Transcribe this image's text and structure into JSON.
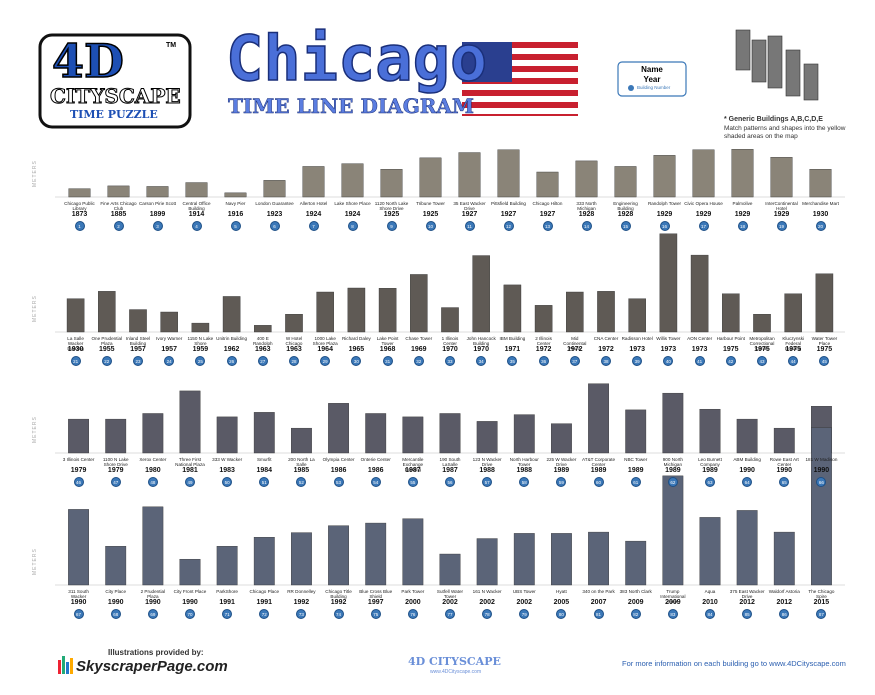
{
  "header": {
    "logo_title": "4D",
    "logo_subtitle": "CITYSCAPE",
    "logo_tm": "TM",
    "logo_caption": "TIME PUZZLE",
    "title": "Chicago",
    "subtitle": "TIME LINE DIAGRAM",
    "legend_box": {
      "name": "Name",
      "year": "Year",
      "number": "Building Number"
    },
    "generic_note": "* Generic Buildings A,B,C,D,E",
    "generic_instructions": "Match patterns and shapes into the yellow shaded areas on the map"
  },
  "rows": [
    {
      "axis_label": "METERS",
      "ylim": [
        0,
        180
      ],
      "color": "#8a8478",
      "buildings": [
        {
          "name": "Chicago Public Library",
          "year": 1873,
          "number": 1,
          "height": 30
        },
        {
          "name": "Fine Arts Chicago Club",
          "year": 1885,
          "number": 2,
          "height": 40
        },
        {
          "name": "Carson Pirie Scott",
          "year": 1899,
          "number": 3,
          "height": 38
        },
        {
          "name": "Central Office Building",
          "year": 1914,
          "number": 4,
          "height": 52
        },
        {
          "name": "Navy Pier",
          "year": 1916,
          "number": 5,
          "height": 15
        },
        {
          "name": "London Guarantee",
          "year": 1923,
          "number": 6,
          "height": 60
        },
        {
          "name": "Allerton Hotel",
          "year": 1924,
          "number": 7,
          "height": 110
        },
        {
          "name": "Lake Shore Place",
          "year": 1924,
          "number": 8,
          "height": 120
        },
        {
          "name": "1120 North Lake Shore Drive",
          "year": 1925,
          "number": 9,
          "height": 100
        },
        {
          "name": "Tribune Tower",
          "year": 1925,
          "number": 10,
          "height": 141
        },
        {
          "name": "35 East Wacker Drive",
          "year": 1927,
          "number": 11,
          "height": 160
        },
        {
          "name": "Pittsfield Building",
          "year": 1927,
          "number": 12,
          "height": 170
        },
        {
          "name": "Chicago Hilton",
          "year": 1927,
          "number": 13,
          "height": 90
        },
        {
          "name": "333 North Michigan",
          "year": 1928,
          "number": 14,
          "height": 130
        },
        {
          "name": "Engineering Building",
          "year": 1928,
          "number": 15,
          "height": 110
        },
        {
          "name": "Randolph Tower",
          "year": 1929,
          "number": 16,
          "height": 150
        },
        {
          "name": "Civic Opera House",
          "year": 1929,
          "number": 17,
          "height": 170
        },
        {
          "name": "Palmolive",
          "year": 1929,
          "number": 18,
          "height": 172
        },
        {
          "name": "InterContinental Hotel",
          "year": 1929,
          "number": 19,
          "height": 143
        },
        {
          "name": "Merchandise Mart",
          "year": 1930,
          "number": 20,
          "height": 100
        }
      ]
    },
    {
      "axis_label": "METERS",
      "ylim": [
        0,
        450
      ],
      "color": "#5f5a55",
      "buildings": [
        {
          "name": "La Salle Wacker Building",
          "year": 1930,
          "number": 21,
          "height": 150
        },
        {
          "name": "One Prudential Plaza",
          "year": 1955,
          "number": 22,
          "height": 183
        },
        {
          "name": "Inland Steel Building",
          "year": 1957,
          "number": 23,
          "height": 101
        },
        {
          "name": "Ivory Warner",
          "year": 1957,
          "number": 24,
          "height": 90
        },
        {
          "name": "1150 N Lake Shore",
          "year": 1959,
          "number": 25,
          "height": 40
        },
        {
          "name": "Unitrin Building",
          "year": 1962,
          "number": 26,
          "height": 160
        },
        {
          "name": "400 E Randolph",
          "year": 1963,
          "number": 27,
          "height": 30
        },
        {
          "name": "W Hotel Chicago",
          "year": 1963,
          "number": 28,
          "height": 80
        },
        {
          "name": "1000 Lake Shore Plaza",
          "year": 1964,
          "number": 29,
          "height": 180
        },
        {
          "name": "Richard Daley",
          "year": 1965,
          "number": 30,
          "height": 198
        },
        {
          "name": "Lake Point Tower",
          "year": 1968,
          "number": 31,
          "height": 197
        },
        {
          "name": "Chase Tower",
          "year": 1969,
          "number": 32,
          "height": 259
        },
        {
          "name": "1 Illinois Center",
          "year": 1970,
          "number": 33,
          "height": 110
        },
        {
          "name": "John Hancock Building",
          "year": 1970,
          "number": 34,
          "height": 344
        },
        {
          "name": "IBM Building",
          "year": 1971,
          "number": 35,
          "height": 212
        },
        {
          "name": "2 Illinois Center",
          "year": 1972,
          "number": 36,
          "height": 120
        },
        {
          "name": "Mid Continental Plaza",
          "year": 1972,
          "number": 37,
          "height": 180
        },
        {
          "name": "CNA Center",
          "year": 1972,
          "number": 38,
          "height": 183
        },
        {
          "name": "Radisson Hotel",
          "year": 1973,
          "number": 39,
          "height": 150
        },
        {
          "name": "Willis Tower",
          "year": 1973,
          "number": 40,
          "height": 442
        },
        {
          "name": "AON Center",
          "year": 1973,
          "number": 41,
          "height": 346
        },
        {
          "name": "Harbour Point",
          "year": 1975,
          "number": 42,
          "height": 172
        },
        {
          "name": "Metropolitan Correctional Center",
          "year": 1975,
          "number": 43,
          "height": 80
        },
        {
          "name": "Kluczynski Federal Building",
          "year": 1975,
          "number": 44,
          "height": 172
        },
        {
          "name": "Water Tower Place",
          "year": 1975,
          "number": 45,
          "height": 262
        }
      ]
    },
    {
      "axis_label": "METERS",
      "ylim": [
        0,
        310
      ],
      "color": "#5a5a66",
      "buildings": [
        {
          "name": "3 Illinois Center",
          "year": 1979,
          "number": 46,
          "height": 150
        },
        {
          "name": "1100 N Lake Shore Drive",
          "year": 1979,
          "number": 47,
          "height": 150
        },
        {
          "name": "Xerox Center",
          "year": 1980,
          "number": 48,
          "height": 175
        },
        {
          "name": "Three First National Plaza",
          "year": 1981,
          "number": 49,
          "height": 275
        },
        {
          "name": "333 W Wacker",
          "year": 1983,
          "number": 50,
          "height": 160
        },
        {
          "name": "Smurfit",
          "year": 1984,
          "number": 51,
          "height": 180
        },
        {
          "name": "200 North La Salle",
          "year": 1985,
          "number": 52,
          "height": 110
        },
        {
          "name": "Olympia Center",
          "year": 1986,
          "number": 53,
          "height": 220
        },
        {
          "name": "Onterie Center",
          "year": 1986,
          "number": 54,
          "height": 175
        },
        {
          "name": "Mercantile Exchange Building",
          "year": 1987,
          "number": 55,
          "height": 160
        },
        {
          "name": "190 South LaSalle",
          "year": 1987,
          "number": 56,
          "height": 175
        },
        {
          "name": "123 N Wacker Drive",
          "year": 1988,
          "number": 57,
          "height": 140
        },
        {
          "name": "North Harbour Tower",
          "year": 1988,
          "number": 58,
          "height": 170
        },
        {
          "name": "225 W Wacker Drive",
          "year": 1989,
          "number": 59,
          "height": 130
        },
        {
          "name": "AT&T Corporate Center",
          "year": 1989,
          "number": 60,
          "height": 307
        },
        {
          "name": "NBC Tower",
          "year": 1989,
          "number": 61,
          "height": 191
        },
        {
          "name": "900 North Michigan",
          "year": 1989,
          "number": 62,
          "height": 265
        },
        {
          "name": "Leo Burnett Company",
          "year": 1989,
          "number": 63,
          "height": 194
        },
        {
          "name": "ABM Building",
          "year": 1990,
          "number": 64,
          "height": 150
        },
        {
          "name": "Rowe East Art Center",
          "year": 1990,
          "number": 65,
          "height": 110
        },
        {
          "name": "181 W Madison",
          "year": 1990,
          "number": 66,
          "height": 207
        }
      ]
    },
    {
      "axis_label": "METERS",
      "ylim": [
        0,
        620
      ],
      "color": "#5b6478",
      "buildings": [
        {
          "name": "311 South Wacker",
          "year": 1990,
          "number": 67,
          "height": 293
        },
        {
          "name": "City Place",
          "year": 1990,
          "number": 68,
          "height": 150
        },
        {
          "name": "2 Prudential Plaza",
          "year": 1990,
          "number": 69,
          "height": 303
        },
        {
          "name": "City Front Place",
          "year": 1990,
          "number": 70,
          "height": 100
        },
        {
          "name": "ParkShore",
          "year": 1991,
          "number": 71,
          "height": 150
        },
        {
          "name": "Chicago Place",
          "year": 1991,
          "number": 72,
          "height": 185
        },
        {
          "name": "RR Donnelley",
          "year": 1992,
          "number": 73,
          "height": 203
        },
        {
          "name": "Chicago Title Building",
          "year": 1992,
          "number": 74,
          "height": 230
        },
        {
          "name": "Blue Cross Blue Shield",
          "year": 1997,
          "number": 75,
          "height": 240
        },
        {
          "name": "Park Tower",
          "year": 2000,
          "number": 76,
          "height": 257
        },
        {
          "name": "Sutfell Water Tower",
          "year": 2002,
          "number": 77,
          "height": 120
        },
        {
          "name": "161 N Wacker",
          "year": 2002,
          "number": 78,
          "height": 180
        },
        {
          "name": "UBS Tower",
          "year": 2002,
          "number": 79,
          "height": 200
        },
        {
          "name": "Hyatt",
          "year": 2005,
          "number": 80,
          "height": 200
        },
        {
          "name": "340 on the Park",
          "year": 2007,
          "number": 81,
          "height": 205
        },
        {
          "name": "383 North Clark",
          "year": 2009,
          "number": 82,
          "height": 170
        },
        {
          "name": "Trump International Hotel",
          "year": 2009,
          "number": 83,
          "height": 423
        },
        {
          "name": "Aqua",
          "year": 2010,
          "number": 84,
          "height": 262
        },
        {
          "name": "375 East Wacker Drive",
          "year": 2012,
          "number": 85,
          "height": 289
        },
        {
          "name": "Waldorf Astoria",
          "year": 2012,
          "number": 86,
          "height": 205
        },
        {
          "name": "The Chicago Spire",
          "year": 2015,
          "number": 87,
          "height": 610
        }
      ]
    }
  ],
  "footer": {
    "credit_label": "Illustrations provided by:",
    "credit_site": "SkyscraperPage.com",
    "brand": "4D CITYSCAPE",
    "brand_url": "www.4DCityscape.com",
    "info": "For more information on each building go to www.4DCityscape.com"
  }
}
